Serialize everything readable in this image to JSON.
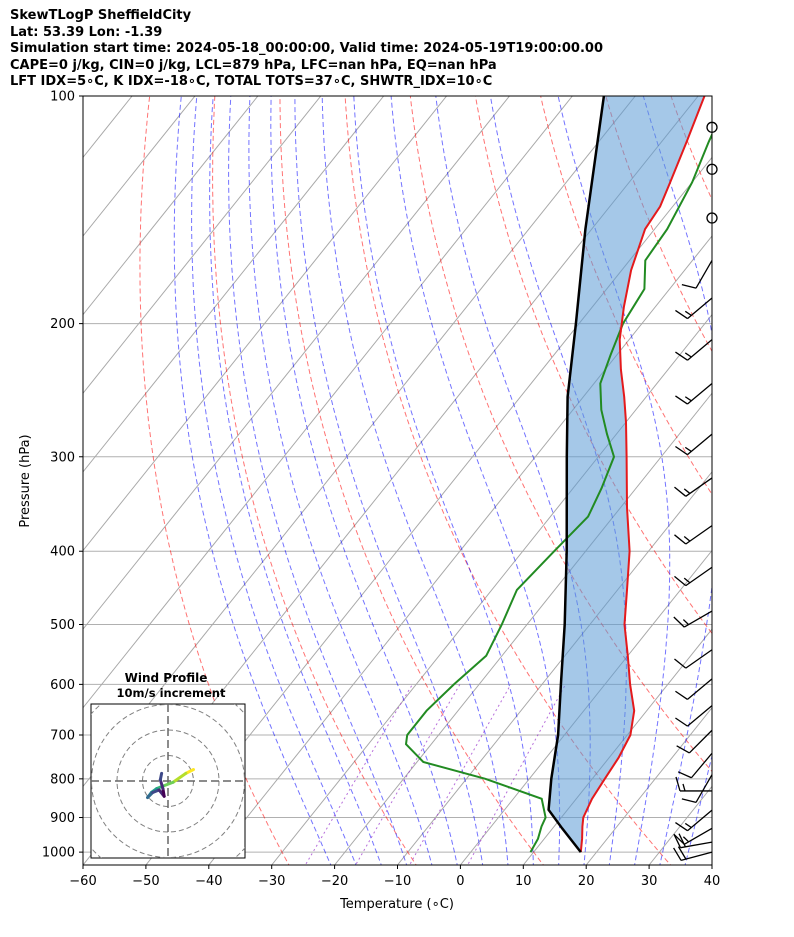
{
  "header": {
    "lines": [
      "SkewTLogP SheffieldCity",
      "Lat: 53.39   Lon: -1.39",
      "Simulation start time: 2024-05-18_00:00:00, Valid time: 2024-05-19T19:00:00.00",
      "CAPE=0 j/kg, CIN=0 j/kg, LCL=879 hPa, LFC=nan hPa, EQ=nan hPa",
      "LFT IDX=5∘C, K IDX=-18∘C, TOTAL TOTS=37∘C, SHWTR_IDX=10∘C"
    ]
  },
  "chart_data": {
    "type": "skewt-logp",
    "xlabel": "Temperature (∘C)",
    "ylabel": "Pressure (hPa)",
    "xlim": [
      -60,
      40
    ],
    "ylim": [
      1040,
      100
    ],
    "x_ticks": [
      -60,
      -50,
      -40,
      -30,
      -20,
      -10,
      0,
      10,
      20,
      30,
      40
    ],
    "y_ticks": [
      100,
      200,
      300,
      400,
      500,
      600,
      700,
      800,
      900,
      1000
    ],
    "grid": true,
    "colors": {
      "temperature": "#e41a1c",
      "dewpoint": "#228b22",
      "parcel": "#000000",
      "cape_fill": "#5b9bd5",
      "dry_adiabat": "#ff0000",
      "moist_adiabat": "#0000ff",
      "mixing_ratio": "#9932cc"
    },
    "temperature_profile": {
      "pressure": [
        1000,
        960,
        925,
        900,
        850,
        800,
        750,
        700,
        650,
        600,
        550,
        500,
        450,
        400,
        350,
        300,
        270,
        250,
        230,
        210,
        190,
        170,
        150,
        140,
        130,
        115,
        100
      ],
      "temperature": [
        17.5,
        16,
        14.5,
        13.5,
        12.5,
        12,
        11.5,
        10.5,
        8,
        4,
        0,
        -4.5,
        -8.5,
        -13,
        -19,
        -25.5,
        -30,
        -33.5,
        -37.5,
        -41.5,
        -45,
        -48.5,
        -51.5,
        -52,
        -53.5,
        -56,
        -59
      ]
    },
    "dewpoint_profile": {
      "pressure": [
        1000,
        960,
        925,
        900,
        850,
        800,
        760,
        720,
        700,
        650,
        600,
        550,
        500,
        450,
        400,
        360,
        330,
        300,
        280,
        260,
        240,
        220,
        200,
        180,
        165,
        150,
        130,
        115,
        100
      ],
      "dewpoint": [
        9.5,
        9,
        8,
        7.5,
        4.5,
        -7,
        -19,
        -24,
        -25,
        -25,
        -24,
        -22.5,
        -24,
        -26,
        -25,
        -24,
        -25.5,
        -27.5,
        -31.5,
        -35.5,
        -39,
        -41,
        -43,
        -44,
        -47.5,
        -48,
        -50,
        -52.5,
        -55
      ]
    },
    "parcel_profile": {
      "pressure": [
        1000,
        930,
        879,
        800,
        700,
        600,
        500,
        400,
        300,
        250,
        200,
        150,
        100
      ],
      "temperature": [
        17.5,
        11.5,
        7,
        3.5,
        -1,
        -7,
        -14,
        -23,
        -35,
        -42.5,
        -50.5,
        -61,
        -75
      ]
    },
    "cape_fill": true,
    "wind_barbs": [
      {
        "pressure": 1000,
        "speed_kt": 20,
        "direction_deg": 255
      },
      {
        "pressure": 970,
        "speed_kt": 20,
        "direction_deg": 260
      },
      {
        "pressure": 930,
        "speed_kt": 15,
        "direction_deg": 240
      },
      {
        "pressure": 880,
        "speed_kt": 15,
        "direction_deg": 230
      },
      {
        "pressure": 830,
        "speed_kt": 15,
        "direction_deg": 270
      },
      {
        "pressure": 790,
        "speed_kt": 10,
        "direction_deg": 210
      },
      {
        "pressure": 740,
        "speed_kt": 10,
        "direction_deg": 220
      },
      {
        "pressure": 690,
        "speed_kt": 10,
        "direction_deg": 225
      },
      {
        "pressure": 640,
        "speed_kt": 10,
        "direction_deg": 230
      },
      {
        "pressure": 590,
        "speed_kt": 10,
        "direction_deg": 230
      },
      {
        "pressure": 540,
        "speed_kt": 10,
        "direction_deg": 235
      },
      {
        "pressure": 480,
        "speed_kt": 15,
        "direction_deg": 240
      },
      {
        "pressure": 420,
        "speed_kt": 15,
        "direction_deg": 235
      },
      {
        "pressure": 370,
        "speed_kt": 15,
        "direction_deg": 235
      },
      {
        "pressure": 320,
        "speed_kt": 15,
        "direction_deg": 235
      },
      {
        "pressure": 280,
        "speed_kt": 15,
        "direction_deg": 230
      },
      {
        "pressure": 240,
        "speed_kt": 15,
        "direction_deg": 230
      },
      {
        "pressure": 210,
        "speed_kt": 15,
        "direction_deg": 230
      },
      {
        "pressure": 185,
        "speed_kt": 15,
        "direction_deg": 230
      },
      {
        "pressure": 165,
        "speed_kt": 10,
        "direction_deg": 210
      },
      {
        "pressure": 145,
        "speed_kt": 0,
        "direction_deg": 0
      },
      {
        "pressure": 125,
        "speed_kt": 0,
        "direction_deg": 0
      },
      {
        "pressure": 110,
        "speed_kt": 0,
        "direction_deg": 0
      }
    ],
    "hodograph": {
      "title": "Wind Profile",
      "subtitle": "10m/s increment",
      "rings_ms": [
        10,
        20,
        30,
        40
      ],
      "trace": [
        {
          "u": 10,
          "v": 4.5
        },
        {
          "u": 7,
          "v": 3
        },
        {
          "u": 2,
          "v": -0.5
        },
        {
          "u": -2,
          "v": -2
        },
        {
          "u": -4.5,
          "v": -3
        },
        {
          "u": -6.5,
          "v": -4.5
        },
        {
          "u": -8,
          "v": -6.5
        },
        {
          "u": -6,
          "v": -4.5
        },
        {
          "u": -3.5,
          "v": -3.5
        },
        {
          "u": -1.5,
          "v": -6
        },
        {
          "u": -2,
          "v": -3
        },
        {
          "u": -3,
          "v": 0.5
        },
        {
          "u": -2.5,
          "v": 3
        }
      ]
    }
  }
}
